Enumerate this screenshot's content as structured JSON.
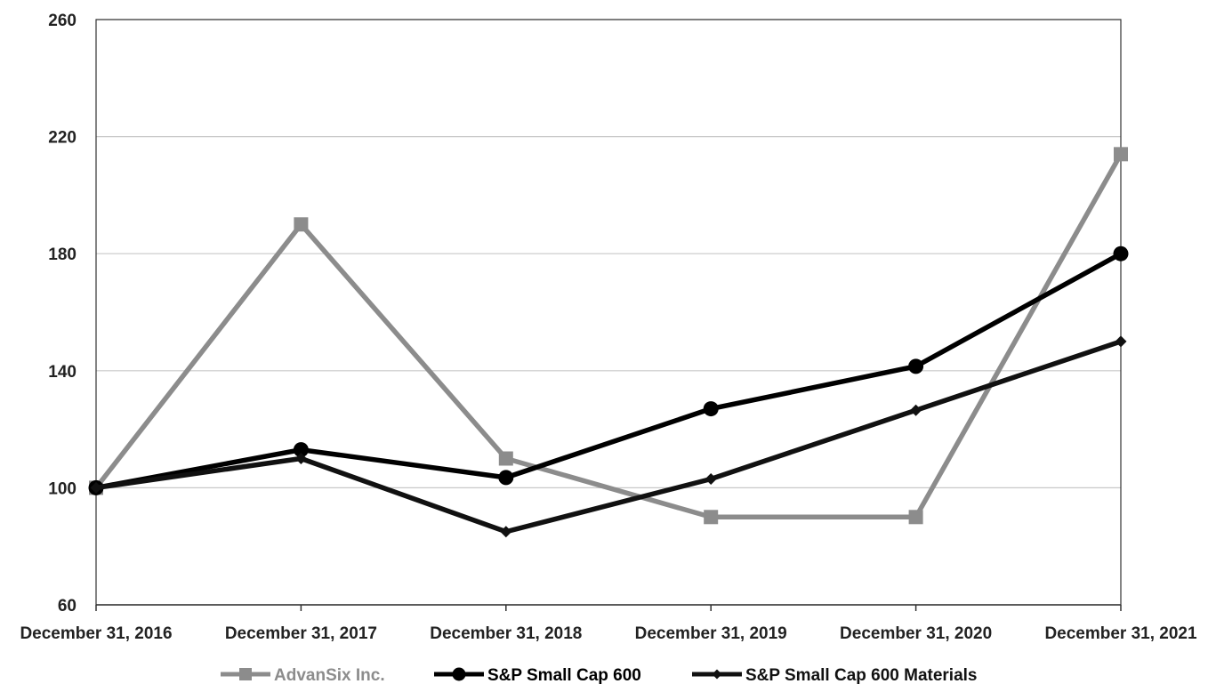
{
  "chart_data": {
    "type": "line",
    "categories": [
      "December 31, 2016",
      "December 31, 2017",
      "December 31, 2018",
      "December 31, 2019",
      "December 31, 2020",
      "December 31, 2021"
    ],
    "ylim": [
      60,
      260
    ],
    "yticks": [
      60,
      100,
      140,
      180,
      220,
      260
    ],
    "grid": true,
    "legend_position": "bottom",
    "series": [
      {
        "name": "AdvanSix Inc.",
        "values": [
          100,
          190,
          110,
          90,
          90,
          214
        ],
        "color": "#8c8c8c",
        "marker": "square"
      },
      {
        "name": "S&P Small Cap 600",
        "values": [
          100,
          113,
          103.5,
          127,
          141.5,
          180
        ],
        "color": "#000000",
        "marker": "circle"
      },
      {
        "name": "S&P Small Cap 600 Materials",
        "values": [
          100,
          110,
          85,
          103,
          126.5,
          150
        ],
        "color": "#111111",
        "marker": "diamond"
      }
    ]
  }
}
